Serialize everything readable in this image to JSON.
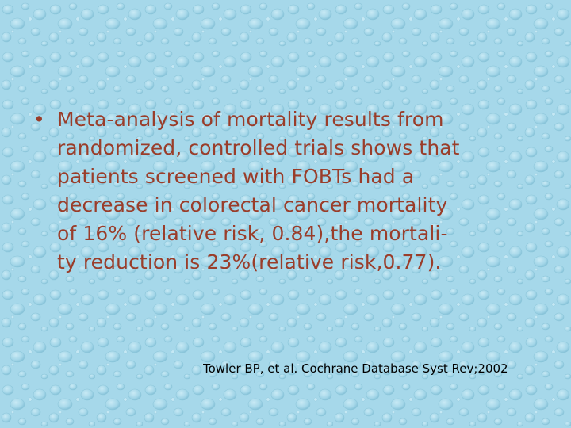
{
  "slide": {
    "bullet_symbol": "•",
    "bullet_lines": [
      "Meta-analysis of mortality results from",
      "randomized, controlled trials shows that",
      "patients screened with FOBTs had a",
      "decrease in colorectal cancer mortality",
      "of 16% (relative risk, 0.84),the mortali-",
      "ty reduction is 23%(relative risk,0.77)."
    ],
    "citation": "Towler BP, et al. Cochrane Database Syst Rev;2002"
  },
  "colors": {
    "background": "#a6d8ea",
    "text": "#9a3d2a",
    "citation": "#000000"
  }
}
